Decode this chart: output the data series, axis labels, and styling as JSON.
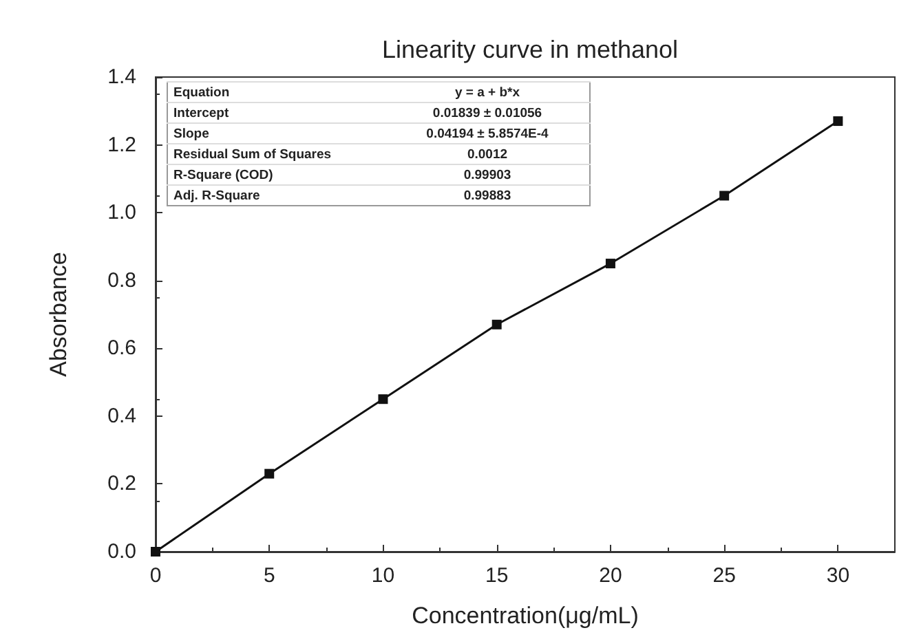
{
  "chart_data": {
    "type": "line",
    "title": "Linearity curve in methanol",
    "xlabel": "Concentration(μg/mL)",
    "ylabel": "Absorbance",
    "x": [
      0,
      5,
      10,
      15,
      20,
      25,
      30
    ],
    "series": [
      {
        "color": "#111111",
        "values": [
          0,
          0.23,
          0.45,
          0.67,
          0.85,
          1.05,
          1.27
        ]
      }
    ],
    "xlim": [
      0,
      32.5
    ],
    "xticks": [
      0,
      5,
      10,
      15,
      20,
      25,
      30
    ],
    "ylim": [
      0,
      1.4
    ],
    "yticks": [
      {
        "value": 0,
        "label": "0.0"
      },
      {
        "value": 0.2,
        "label": "0.2"
      },
      {
        "value": 0.4,
        "label": "0.4"
      },
      {
        "value": 0.6,
        "label": "0.6"
      },
      {
        "value": 0.8,
        "label": "0.8"
      },
      {
        "value": 1.0,
        "label": "1.0"
      },
      {
        "value": 1.2,
        "label": "1.2"
      },
      {
        "value": 1.4,
        "label": "1.4"
      }
    ],
    "marker": "square",
    "line_style": "solid",
    "grid": false,
    "annotations": [
      "Equation",
      "y = a + b*x",
      "Intercept",
      "0.01839 ± 0.01056",
      "Slope",
      "0.04194 ± 5.8574E-4",
      "Residual Sum of Squares",
      "0.0012",
      "R-Square (COD)",
      "0.99903",
      "Adj. R-Square",
      "0.99883"
    ]
  }
}
